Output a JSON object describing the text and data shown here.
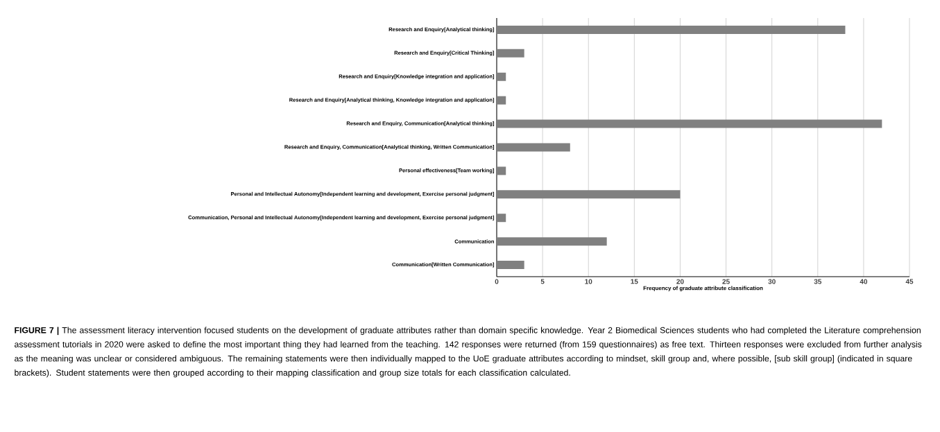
{
  "chart_data": {
    "type": "bar",
    "orientation": "horizontal",
    "categories": [
      "Research and Enquiry[Analytical thinking]",
      "Research and Enquiry[Critical Thinking]",
      "Research and Enquiry[Knowledge integration and application]",
      "Research and Enquiry[Analytical thinking, Knowledge integration and application]",
      "Research and Enquiry, Communication[Analytical thinking]",
      "Research and Enquiry, Communication[Analytical thinking, Written Communication]",
      "Personal effectiveness[Team working]",
      "Personal and Intellectual Autonomy[Independent learning and development, Exercise personal judgment]",
      "Communication, Personal and Intellectual Autonomy[Independent learning and development, Exercise personal judgment]",
      "Communication",
      "Communication[Written Communication]"
    ],
    "values": [
      38,
      3,
      1,
      1,
      42,
      8,
      1,
      20,
      1,
      12,
      3
    ],
    "color": "#808080",
    "xlim": [
      0,
      45
    ],
    "xticks": [
      0,
      5,
      10,
      15,
      20,
      25,
      30,
      35,
      40,
      45
    ],
    "xlabel": "Frequency of graduate attribute classification",
    "grid": "x",
    "annotations": [
      "**FIGURE 7 |** The assessment literacy intervention focused students on the development of graduate attributes rather than domain specific knowledge. Year 2 Biomedical Sciences students who had completed the Literature comprehension assessment tutorials in 2020 were asked to define the most important thing they had learned from the teaching. 142 responses were returned (from 159 questionnaires) as free text. Thirteen responses were excluded from further analysis as the meaning was unclear or considered ambiguous. The remaining statements were then individually mapped to the UoE graduate attributes according to mindset, skill group and, where possible, [sub skill group] (indicated in square brackets). Student statements were then grouped according to their mapping classification and group size totals for each classification calculated."
    ]
  }
}
